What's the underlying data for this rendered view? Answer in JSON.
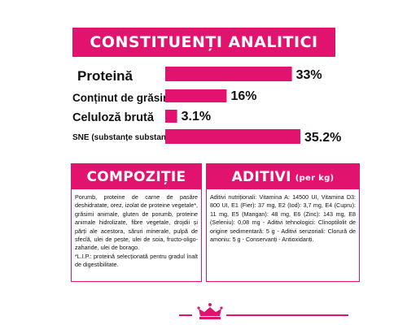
{
  "header": {
    "title": "CONSTITUENȚI ANALITICI"
  },
  "chart_data": {
    "type": "bar",
    "categories": [
      "Proteină",
      "Conținut de grăsimi",
      "Celuloză brută",
      "SNE (substanțe substanțe non azotate)"
    ],
    "values": [
      33,
      16,
      3.1,
      35.2
    ],
    "value_labels": [
      "33%",
      "16%",
      "3.1%",
      "35.2%"
    ],
    "xlim": [
      0,
      35.2
    ],
    "bar_color": "#e2136e"
  },
  "composition": {
    "title": "COMPOZIȚIE",
    "paragraphs": [
      "Porumb, proteine de carne de pasăre deshidratate, orez, izolat de proteine vegetale*, grăsimi animale, gluten de porumb, proteine animale hidrolizate, fibre vegetale, drojdii și părți ale acestora, săruri minerale, pulpă de sfeclă, ulei de pește, ulei de soia, fructo-oligo-zaharide, ulei de borago.",
      "*L.I.P.: proteină selecționată pentru gradul înalt de digestibilitate."
    ]
  },
  "additives": {
    "title": "ADITIVI",
    "unit": "(per kg)",
    "text": "Aditivi nutriționali: Vitamina A: 14500 UI, Vitamina D3: 800 UI, E1 (Fier): 37 mg, E2 (Iod): 3,7 mg, E4 (Cupru): 11 mg, E5 (Mangan): 48 mg, E6 (Zinc): 143 mg, E8 (Seleniu): 0,08 mg - Aditivi tehnologici: Clinoptilolit de origine sedimentară: 5 g - Aditivi senzoriali: Clorură de amoniu: 5 g - Conservanți - Antioxidanți."
  },
  "footer": {
    "logo_icon": "royal-canin-crown-icon"
  },
  "colors": {
    "accent": "#e2136e",
    "text": "#111111"
  }
}
